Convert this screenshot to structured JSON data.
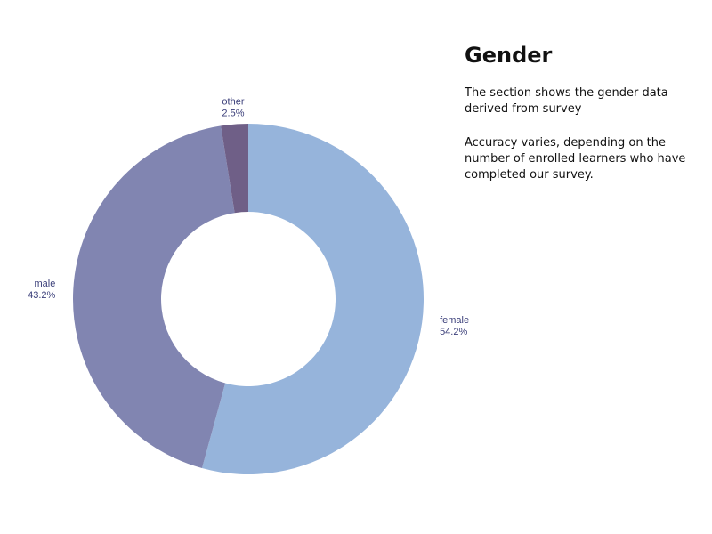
{
  "info": {
    "title": "Gender",
    "paragraph_1": "The section shows the gender data derived from survey",
    "paragraph_2": "Accuracy varies, depending on the number of enrolled learners who have completed our survey."
  },
  "chart_data": {
    "type": "pie",
    "variant": "donut",
    "title": "",
    "categories": [
      "female",
      "male",
      "other"
    ],
    "values": [
      54.2,
      43.2,
      2.5
    ],
    "value_labels": [
      "54.2%",
      "43.2%",
      "2.5%"
    ],
    "colors": [
      "#96b4db",
      "#8185b1",
      "#6f5f87"
    ],
    "label_color": "#3b3f7a",
    "start": "12 o'clock",
    "direction": "clockwise",
    "legend": "none"
  }
}
